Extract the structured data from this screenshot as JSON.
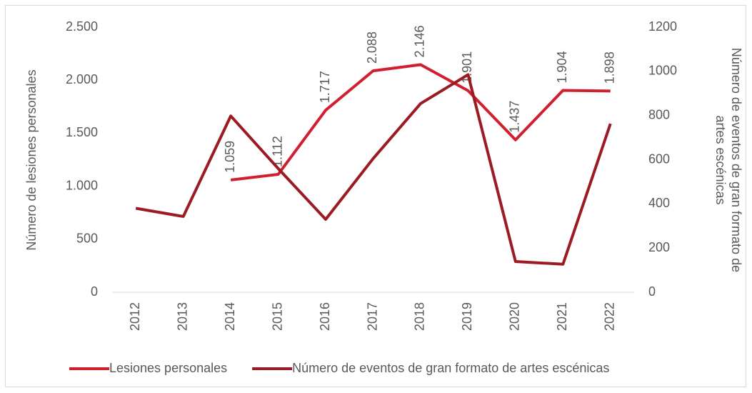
{
  "chart_data": {
    "type": "line",
    "categories": [
      "2012",
      "2013",
      "2014",
      "2015",
      "2016",
      "2017",
      "2018",
      "2019",
      "2020",
      "2021",
      "2022"
    ],
    "series": [
      {
        "name": "Lesiones personales",
        "color": "#d01f2e",
        "values": [
          null,
          null,
          1059,
          1112,
          1717,
          2088,
          2146,
          1901,
          1437,
          1904,
          1898
        ],
        "value_labels": [
          null,
          null,
          "1.059",
          "1.112",
          "1.717",
          "2.088",
          "2.146",
          "1.901",
          "1.437",
          "1.904",
          "1.898"
        ]
      },
      {
        "name": "Número de eventos de gran formato de artes escénicas",
        "color": "#9b1b22",
        "axis": "y2",
        "values": [
          380,
          343,
          798,
          560,
          330,
          605,
          854,
          985,
          139,
          127,
          763
        ]
      }
    ],
    "ylabel": "Número de lesiones personales",
    "y2label": "Número de eventos de gran formato de artes escénicas",
    "ylim": [
      0,
      2500
    ],
    "yticks": [
      0,
      500,
      {
        "value": 1000,
        "label": "1.000"
      },
      {
        "value": 1500,
        "label": "1.500"
      },
      {
        "value": 2000,
        "label": "2.000"
      },
      {
        "value": 2500,
        "label": "2.500"
      }
    ],
    "y2lim": [
      0,
      1200
    ],
    "y2ticks": [
      0,
      200,
      400,
      600,
      800,
      1000,
      1200
    ],
    "grid": false,
    "legend": "bottom"
  }
}
